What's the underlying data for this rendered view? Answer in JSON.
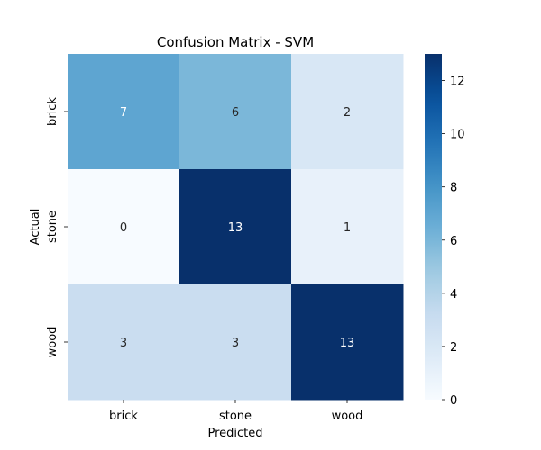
{
  "chart_data": {
    "type": "heatmap",
    "title": "Confusion Matrix - SVM",
    "xlabel": "Predicted",
    "ylabel": "Actual",
    "x_categories": [
      "brick",
      "stone",
      "wood"
    ],
    "y_categories": [
      "brick",
      "stone",
      "wood"
    ],
    "values": [
      [
        7,
        6,
        2
      ],
      [
        0,
        13,
        1
      ],
      [
        3,
        3,
        13
      ]
    ],
    "colorbar": {
      "min": 0,
      "max": 13,
      "ticks": [
        0,
        2,
        4,
        6,
        8,
        10,
        12
      ],
      "colormap": "Blues"
    },
    "annotations": true
  }
}
